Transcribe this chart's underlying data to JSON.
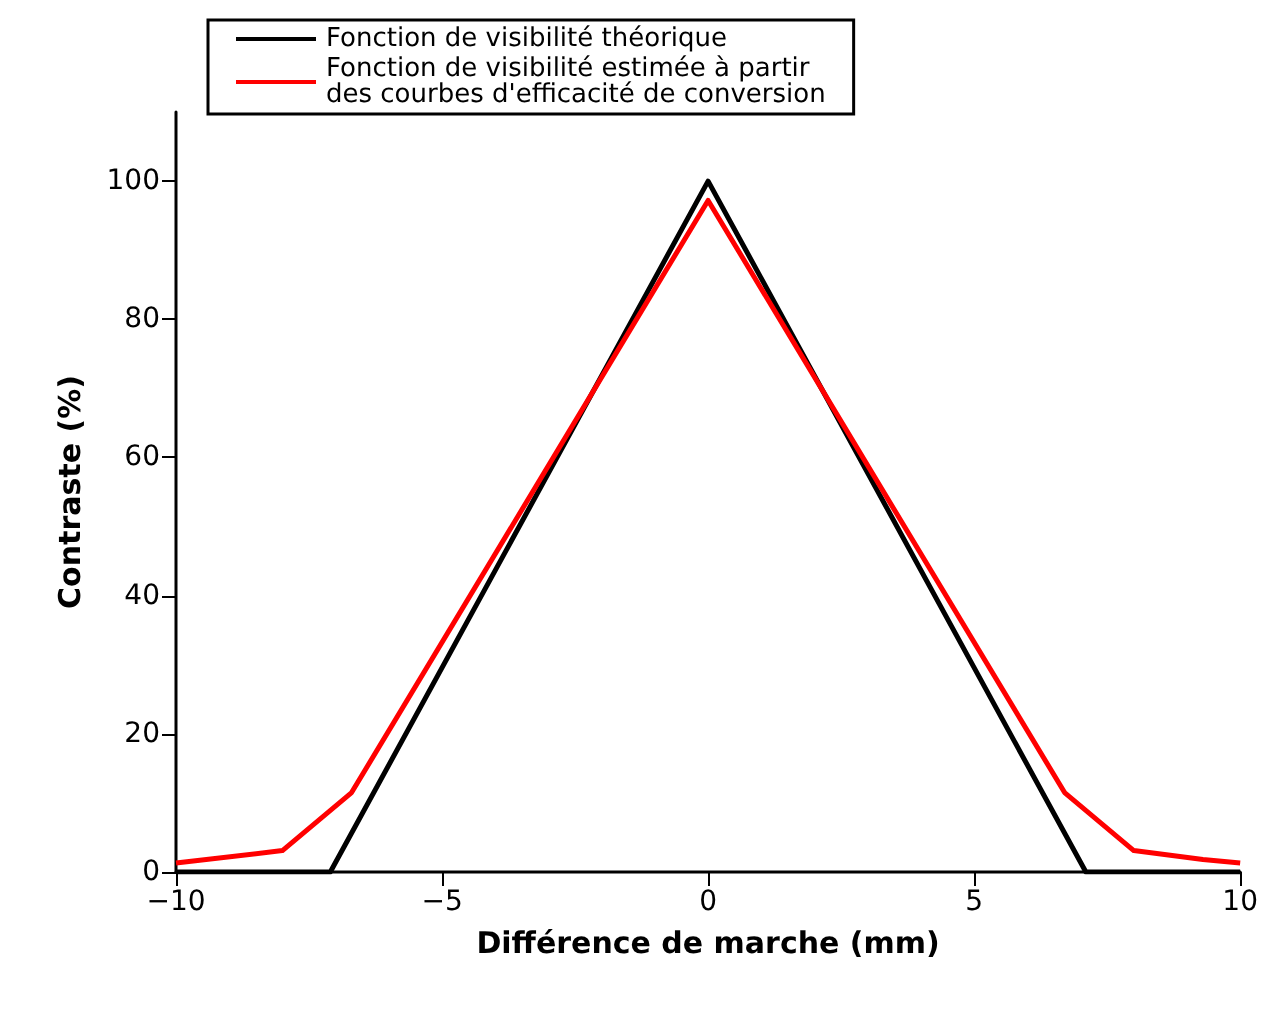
{
  "chart_data": {
    "type": "line",
    "xlabel": "Différence de marche (mm)",
    "ylabel": "Contraste (%)",
    "xlim": [
      -10,
      10
    ],
    "xticks": [
      {
        "value": -10,
        "label": "−10"
      },
      {
        "value": -5,
        "label": "−5"
      },
      0,
      5,
      10
    ],
    "ylim": [
      0,
      110
    ],
    "yticks": [
      0,
      20,
      40,
      60,
      80,
      100
    ],
    "grid": false,
    "legend": "top",
    "marker": "none",
    "line_style": "solid",
    "series": [
      {
        "name": "Fonction de visibilité théorique",
        "color": "#000000",
        "x": [
          -10,
          -7.1,
          0,
          7.1,
          10
        ],
        "values": [
          0,
          0,
          100,
          0,
          0
        ]
      },
      {
        "name": "Fonction de visibilité estimée à partir\ndes courbes d'efficacité de conversion",
        "color": "#ff0000",
        "x": [
          -10,
          -8,
          -6.7,
          0,
          6.7,
          8,
          9.3,
          10
        ],
        "values": [
          1.3,
          3.1,
          11.5,
          97.2,
          11.5,
          3.1,
          1.8,
          1.3
        ]
      }
    ]
  }
}
